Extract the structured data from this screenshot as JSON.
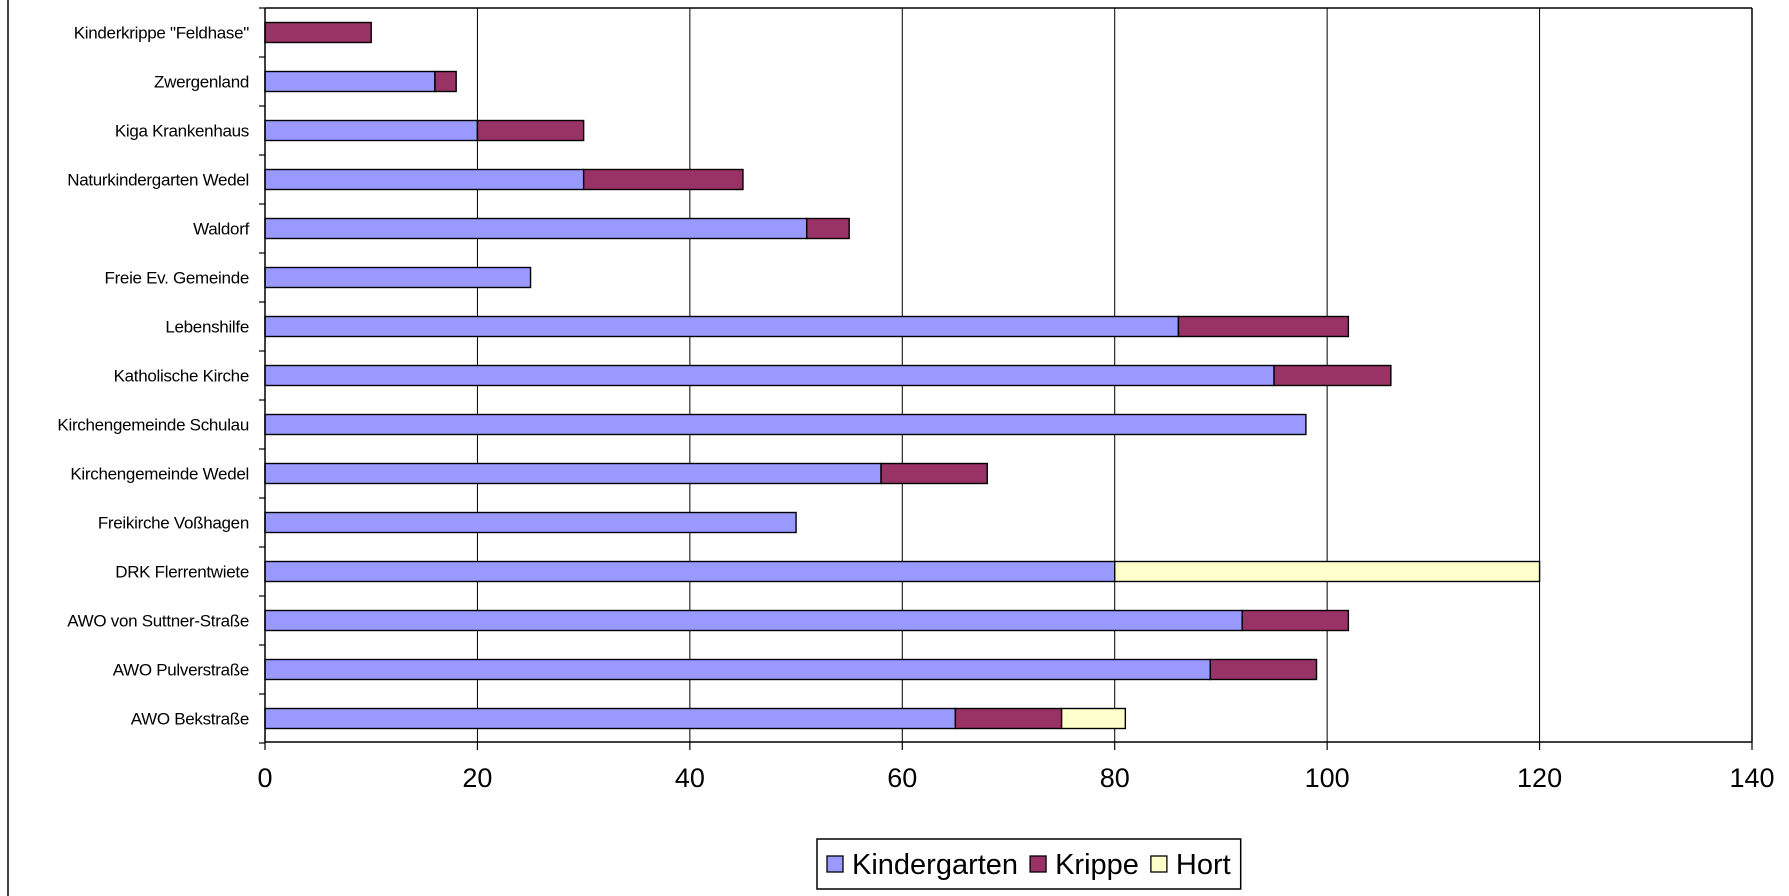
{
  "chart_data": {
    "type": "bar",
    "orientation": "horizontal",
    "stacked": true,
    "title": "",
    "xlabel": "",
    "ylabel": "",
    "xlim": [
      0,
      140
    ],
    "x_ticks": [
      "0",
      "20",
      "40",
      "60",
      "80",
      "100",
      "120",
      "140"
    ],
    "grid": "vertical",
    "legend_position": "bottom",
    "categories": [
      "Kinderkrippe \"Feldhase\"",
      "Zwergenland",
      "Kiga Krankenhaus",
      "Naturkindergarten Wedel",
      "Waldorf",
      "Freie Ev. Gemeinde",
      "Lebenshilfe",
      "Katholische Kirche",
      "Kirchengemeinde Schulau",
      "Kirchengemeinde Wedel",
      "Freikirche Voßhagen",
      "DRK Flerrentwiete",
      "AWO von Suttner-Straße",
      "AWO Pulverstraße",
      "AWO Bekstraße"
    ],
    "series": [
      {
        "name": "Kindergarten",
        "color": "#9999ff",
        "values": [
          0,
          16,
          20,
          30,
          51,
          25,
          86,
          95,
          98,
          58,
          50,
          80,
          92,
          89,
          65
        ]
      },
      {
        "name": "Krippe",
        "color": "#993366",
        "values": [
          10,
          2,
          10,
          15,
          4,
          0,
          16,
          11,
          0,
          10,
          0,
          0,
          10,
          10,
          10
        ]
      },
      {
        "name": "Hort",
        "color": "#ffffcc",
        "values": [
          0,
          0,
          0,
          0,
          0,
          0,
          0,
          0,
          0,
          0,
          0,
          40,
          0,
          0,
          6
        ]
      }
    ]
  }
}
